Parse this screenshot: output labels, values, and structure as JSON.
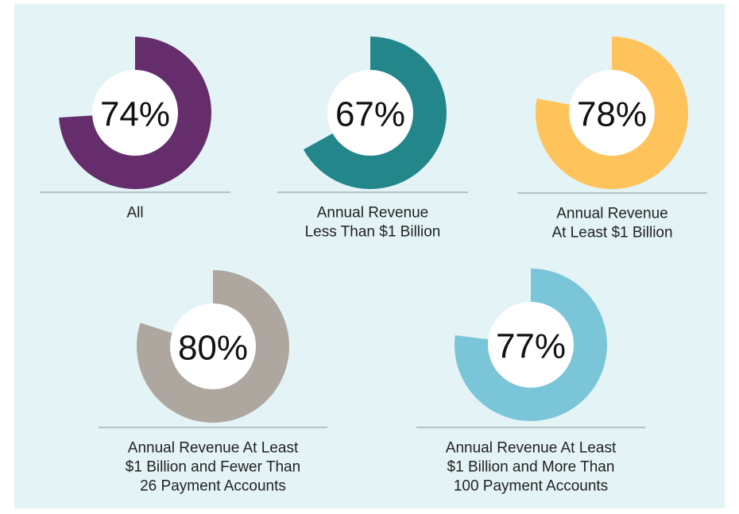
{
  "chart_data": [
    {
      "type": "donut",
      "values": [
        74
      ],
      "value_labels": [
        "74%"
      ],
      "color": "#652d6b",
      "label_lines": [
        "All"
      ]
    },
    {
      "type": "donut",
      "values": [
        67
      ],
      "value_labels": [
        "67%"
      ],
      "color": "#22868a",
      "label_lines": [
        "Annual Revenue",
        "Less Than $1 Billion"
      ]
    },
    {
      "type": "donut",
      "values": [
        78
      ],
      "value_labels": [
        "78%"
      ],
      "color": "#fec35a",
      "label_lines": [
        "Annual Revenue",
        "At Least $1 Billion"
      ]
    },
    {
      "type": "donut",
      "values": [
        80
      ],
      "value_labels": [
        "80%"
      ],
      "color": "#aea7a0",
      "label_lines": [
        "Annual Revenue At Least",
        "$1 Billion and Fewer Than",
        "26 Payment Accounts"
      ]
    },
    {
      "type": "donut",
      "values": [
        77
      ],
      "value_labels": [
        "77%"
      ],
      "color": "#7ac5d8",
      "label_lines": [
        "Annual Revenue At Least",
        "$1 Billion and More Than",
        "100 Payment Accounts"
      ]
    }
  ]
}
